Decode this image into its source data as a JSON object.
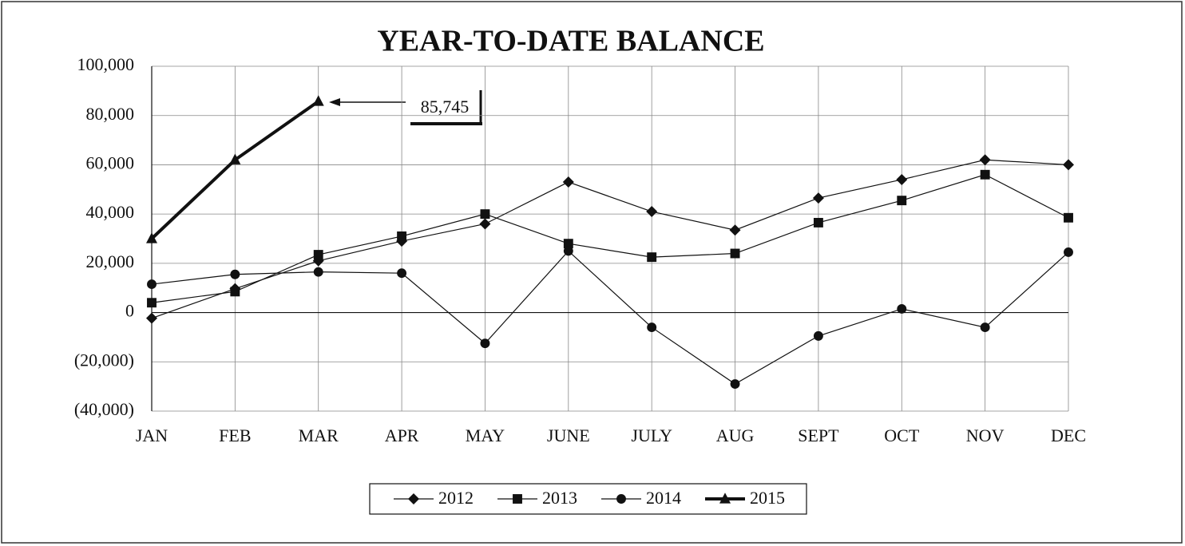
{
  "chart_data": {
    "type": "line",
    "title": "YEAR-TO-DATE BALANCE",
    "categories": [
      "JAN",
      "FEB",
      "MAR",
      "APR",
      "MAY",
      "JUNE",
      "JULY",
      "AUG",
      "SEPT",
      "OCT",
      "NOV",
      "DEC"
    ],
    "series": [
      {
        "name": "2012",
        "color": "#111111",
        "marker": "diamond",
        "width": 1.2,
        "values": [
          -2300,
          9700,
          21000,
          29000,
          36000,
          53000,
          41000,
          33500,
          46500,
          54000,
          62000,
          60000
        ]
      },
      {
        "name": "2013",
        "color": "#111111",
        "marker": "square",
        "width": 1.2,
        "values": [
          4000,
          8500,
          23500,
          31000,
          40000,
          28000,
          22500,
          24000,
          36500,
          45500,
          56000,
          38500
        ]
      },
      {
        "name": "2014",
        "color": "#111111",
        "marker": "circle",
        "width": 1.2,
        "values": [
          11500,
          15500,
          16500,
          16000,
          -12500,
          25000,
          -6000,
          -29000,
          -9500,
          1500,
          -6000,
          24500
        ]
      },
      {
        "name": "2015",
        "color": "#111111",
        "marker": "triangle",
        "width": 4,
        "values": [
          30000,
          62000,
          85745,
          null,
          null,
          null,
          null,
          null,
          null,
          null,
          null,
          null
        ]
      }
    ],
    "ylim": [
      -40000,
      100000
    ],
    "yticks": [
      {
        "value": -40000,
        "label": "(40,000)"
      },
      {
        "value": -20000,
        "label": "(20,000)"
      },
      0,
      {
        "value": 20000,
        "label": "20,000"
      },
      {
        "value": 40000,
        "label": "40,000"
      },
      {
        "value": 60000,
        "label": "60,000"
      },
      {
        "value": 80000,
        "label": "80,000"
      },
      {
        "value": 100000,
        "label": "100,000"
      }
    ],
    "grid": true,
    "legend": "bottom",
    "annotation": {
      "text": "85,745"
    }
  }
}
